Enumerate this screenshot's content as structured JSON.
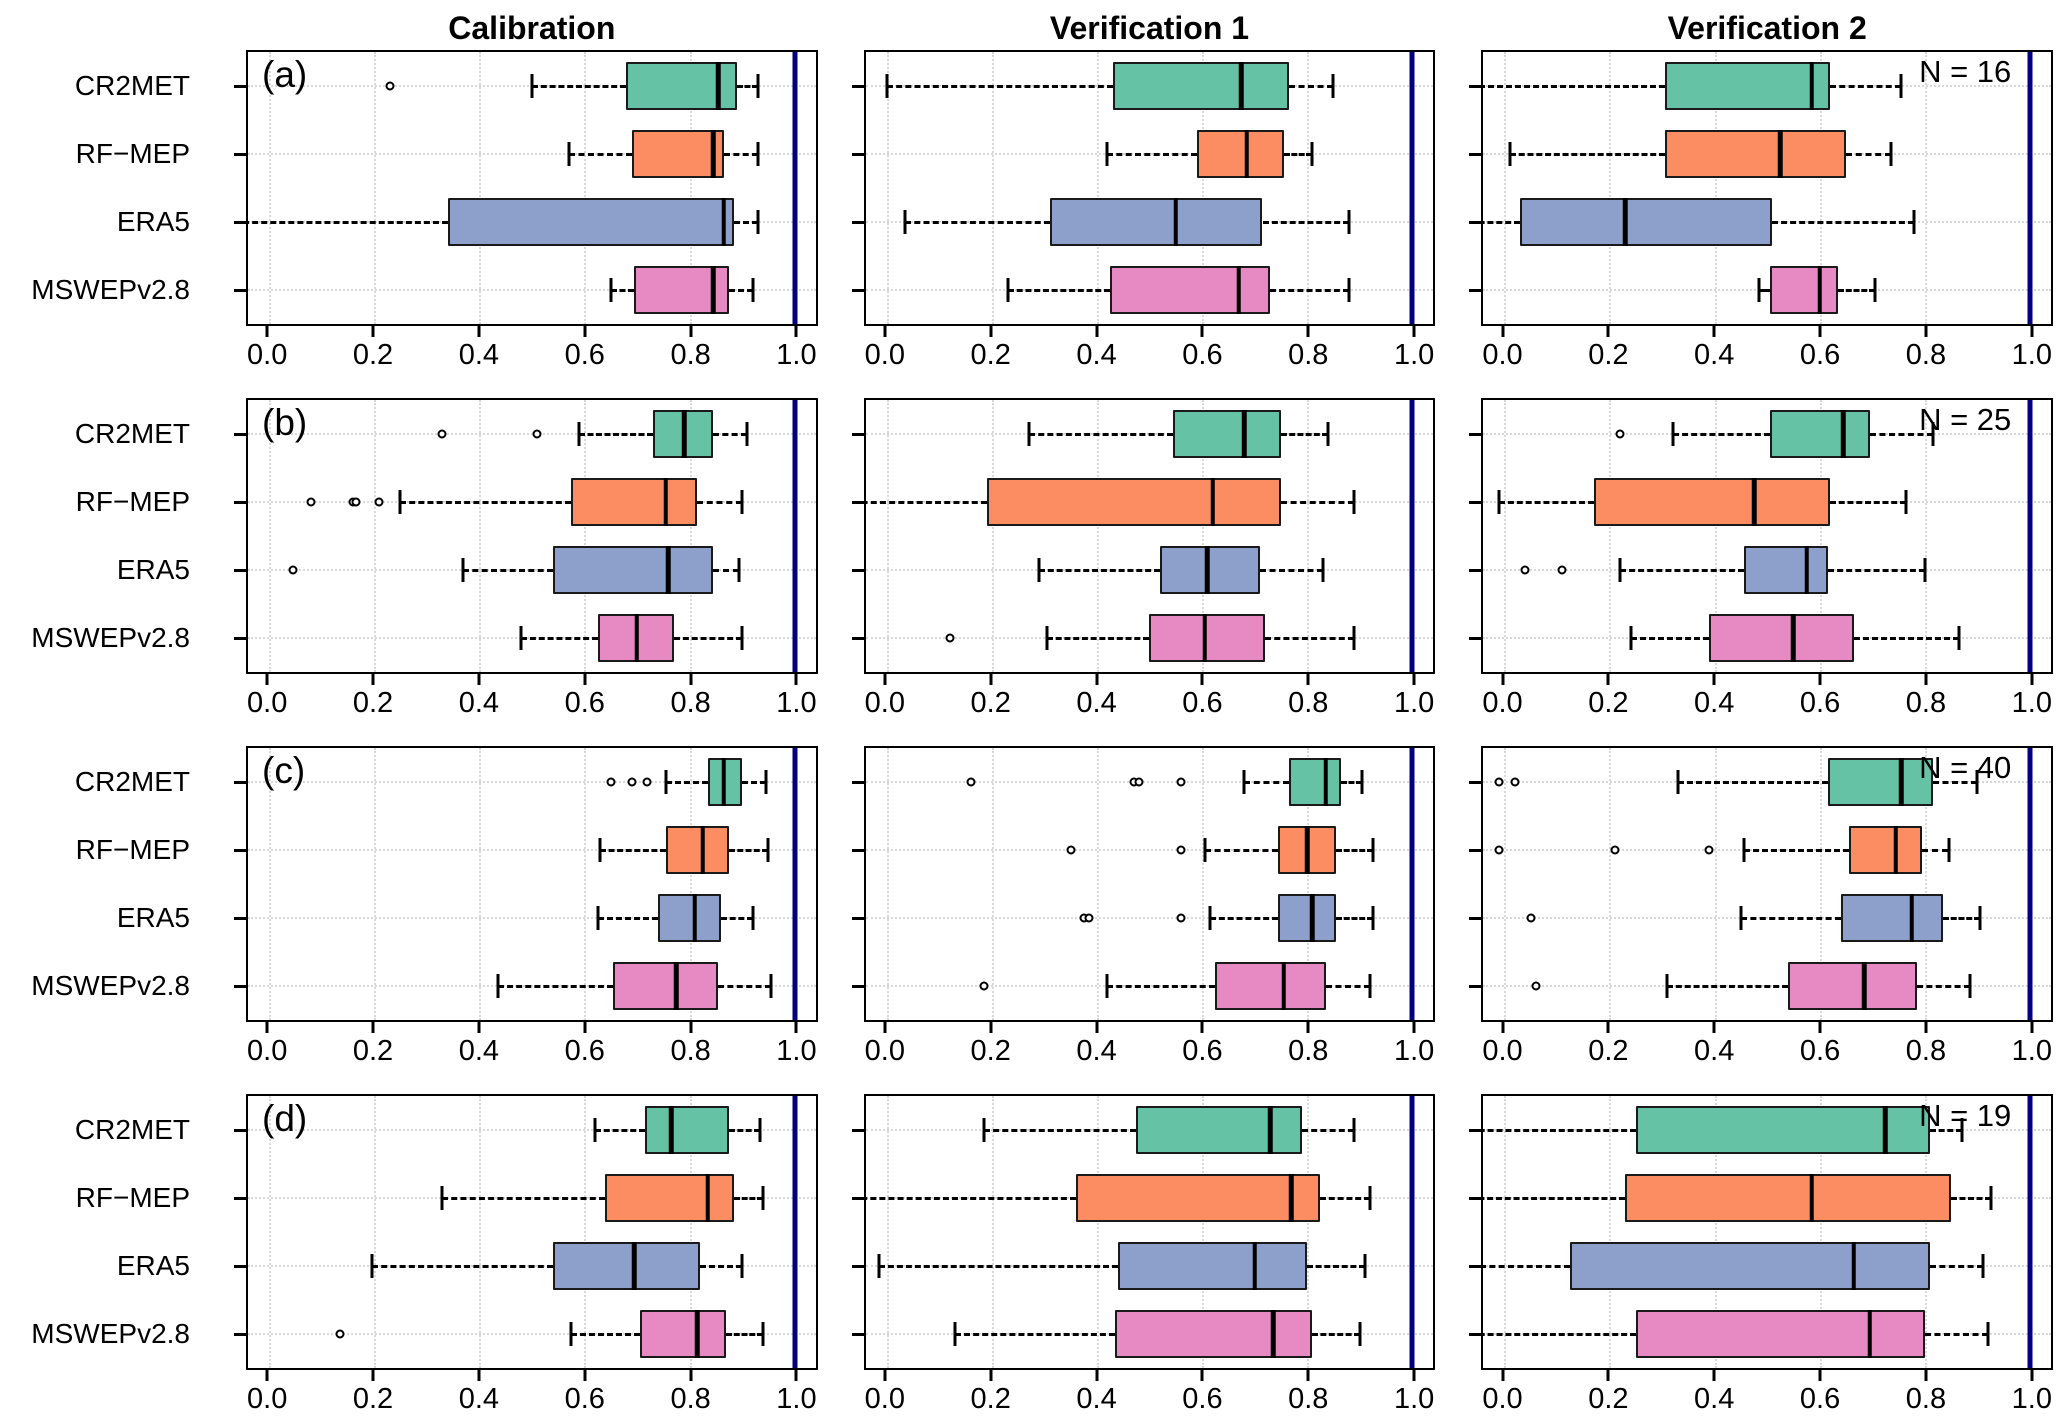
{
  "figure": {
    "col_titles": [
      "Calibration",
      "Verification 1",
      "Verification 2"
    ]
  },
  "chart_data": {
    "type": "boxplot",
    "orientation": "horizontal",
    "grid": "4 rows x 3 columns of panels",
    "columns": [
      "Calibration",
      "Verification 1",
      "Verification 2"
    ],
    "series": [
      "CR2MET",
      "RF−MEP",
      "ERA5",
      "MSWEPv2.8"
    ],
    "series_colors": [
      "#66C2A5",
      "#FC8D62",
      "#8DA0CB",
      "#E78AC3"
    ],
    "xlim": [
      0.0,
      1.0
    ],
    "x_axis_padding": 0.04,
    "x_ticks": [
      0.0,
      0.2,
      0.4,
      0.6,
      0.8,
      1.0
    ],
    "x_tick_labels": [
      "0.0",
      "0.2",
      "0.4",
      "0.6",
      "0.8",
      "1.0"
    ],
    "reference_line_x": 1.0,
    "reference_line_color": "#000080",
    "gridlines": "dotted light gray, horizontal per series and vertical per tick",
    "note": "whisker_low = null means the lower whisker extends beyond the left edge of the panel (clipped)",
    "rows": [
      {
        "label": "(a)",
        "n_label": "N = 16",
        "panels": [
          {
            "column": "Calibration",
            "boxes": [
              {
                "series": "CR2MET",
                "whisker_low": 0.5,
                "q1": 0.68,
                "median": 0.855,
                "q3": 0.89,
                "whisker_high": 0.93,
                "outliers": [
                  0.23
                ]
              },
              {
                "series": "RF-MEP",
                "whisker_low": 0.57,
                "q1": 0.69,
                "median": 0.845,
                "q3": 0.865,
                "whisker_high": 0.93,
                "outliers": []
              },
              {
                "series": "ERA5",
                "whisker_low": null,
                "q1": 0.34,
                "median": 0.865,
                "q3": 0.885,
                "whisker_high": 0.93,
                "outliers": []
              },
              {
                "series": "MSWEPv2.8",
                "whisker_low": 0.65,
                "q1": 0.695,
                "median": 0.845,
                "q3": 0.875,
                "whisker_high": 0.92,
                "outliers": []
              }
            ]
          },
          {
            "column": "Verification 1",
            "boxes": [
              {
                "series": "CR2MET",
                "whisker_low": 0.0,
                "q1": 0.43,
                "median": 0.675,
                "q3": 0.765,
                "whisker_high": 0.85,
                "outliers": []
              },
              {
                "series": "RF-MEP",
                "whisker_low": 0.42,
                "q1": 0.59,
                "median": 0.685,
                "q3": 0.755,
                "whisker_high": 0.81,
                "outliers": []
              },
              {
                "series": "ERA5",
                "whisker_low": 0.035,
                "q1": 0.31,
                "median": 0.55,
                "q3": 0.715,
                "whisker_high": 0.88,
                "outliers": []
              },
              {
                "series": "MSWEPv2.8",
                "whisker_low": 0.23,
                "q1": 0.425,
                "median": 0.67,
                "q3": 0.73,
                "whisker_high": 0.88,
                "outliers": []
              }
            ]
          },
          {
            "column": "Verification 2",
            "boxes": [
              {
                "series": "CR2MET",
                "whisker_low": null,
                "q1": 0.305,
                "median": 0.585,
                "q3": 0.62,
                "whisker_high": 0.755,
                "outliers": []
              },
              {
                "series": "RF-MEP",
                "whisker_low": 0.01,
                "q1": 0.305,
                "median": 0.525,
                "q3": 0.65,
                "whisker_high": 0.735,
                "outliers": []
              },
              {
                "series": "ERA5",
                "whisker_low": null,
                "q1": 0.03,
                "median": 0.23,
                "q3": 0.51,
                "whisker_high": 0.78,
                "outliers": []
              },
              {
                "series": "MSWEPv2.8",
                "whisker_low": 0.485,
                "q1": 0.505,
                "median": 0.6,
                "q3": 0.635,
                "whisker_high": 0.705,
                "outliers": []
              }
            ]
          }
        ]
      },
      {
        "label": "(b)",
        "n_label": "N = 25",
        "panels": [
          {
            "column": "Calibration",
            "boxes": [
              {
                "series": "CR2MET",
                "whisker_low": 0.59,
                "q1": 0.73,
                "median": 0.79,
                "q3": 0.845,
                "whisker_high": 0.91,
                "outliers": [
                  0.33,
                  0.51
                ]
              },
              {
                "series": "RF-MEP",
                "whisker_low": 0.25,
                "q1": 0.575,
                "median": 0.755,
                "q3": 0.815,
                "whisker_high": 0.9,
                "outliers": [
                  0.08,
                  0.16,
                  0.165,
                  0.21
                ]
              },
              {
                "series": "ERA5",
                "whisker_low": 0.37,
                "q1": 0.54,
                "median": 0.76,
                "q3": 0.845,
                "whisker_high": 0.895,
                "outliers": [
                  0.045
                ]
              },
              {
                "series": "MSWEPv2.8",
                "whisker_low": 0.48,
                "q1": 0.625,
                "median": 0.7,
                "q3": 0.77,
                "whisker_high": 0.9,
                "outliers": []
              }
            ]
          },
          {
            "column": "Verification 1",
            "boxes": [
              {
                "series": "CR2MET",
                "whisker_low": 0.27,
                "q1": 0.545,
                "median": 0.68,
                "q3": 0.75,
                "whisker_high": 0.84,
                "outliers": []
              },
              {
                "series": "RF-MEP",
                "whisker_low": null,
                "q1": 0.19,
                "median": 0.62,
                "q3": 0.75,
                "whisker_high": 0.89,
                "outliers": []
              },
              {
                "series": "ERA5",
                "whisker_low": 0.29,
                "q1": 0.52,
                "median": 0.61,
                "q3": 0.71,
                "whisker_high": 0.83,
                "outliers": []
              },
              {
                "series": "MSWEPv2.8",
                "whisker_low": 0.305,
                "q1": 0.5,
                "median": 0.605,
                "q3": 0.72,
                "whisker_high": 0.89,
                "outliers": [
                  0.12
                ]
              }
            ]
          },
          {
            "column": "Verification 2",
            "boxes": [
              {
                "series": "CR2MET",
                "whisker_low": 0.32,
                "q1": 0.505,
                "median": 0.645,
                "q3": 0.695,
                "whisker_high": 0.815,
                "outliers": [
                  0.22
                ]
              },
              {
                "series": "RF-MEP",
                "whisker_low": -0.01,
                "q1": 0.17,
                "median": 0.475,
                "q3": 0.62,
                "whisker_high": 0.765,
                "outliers": []
              },
              {
                "series": "ERA5",
                "whisker_low": 0.22,
                "q1": 0.455,
                "median": 0.575,
                "q3": 0.615,
                "whisker_high": 0.8,
                "outliers": [
                  0.04,
                  0.11
                ]
              },
              {
                "series": "MSWEPv2.8",
                "whisker_low": 0.24,
                "q1": 0.39,
                "median": 0.55,
                "q3": 0.665,
                "whisker_high": 0.865,
                "outliers": []
              }
            ]
          }
        ]
      },
      {
        "label": "(c)",
        "n_label": "N = 40",
        "panels": [
          {
            "column": "Calibration",
            "boxes": [
              {
                "series": "CR2MET",
                "whisker_low": 0.755,
                "q1": 0.835,
                "median": 0.865,
                "q3": 0.9,
                "whisker_high": 0.945,
                "outliers": [
                  0.65,
                  0.69,
                  0.72
                ]
              },
              {
                "series": "RF-MEP",
                "whisker_low": 0.63,
                "q1": 0.755,
                "median": 0.825,
                "q3": 0.875,
                "whisker_high": 0.95,
                "outliers": []
              },
              {
                "series": "ERA5",
                "whisker_low": 0.625,
                "q1": 0.74,
                "median": 0.81,
                "q3": 0.86,
                "whisker_high": 0.92,
                "outliers": []
              },
              {
                "series": "MSWEPv2.8",
                "whisker_low": 0.435,
                "q1": 0.655,
                "median": 0.775,
                "q3": 0.855,
                "whisker_high": 0.955,
                "outliers": []
              }
            ]
          },
          {
            "column": "Verification 1",
            "boxes": [
              {
                "series": "CR2MET",
                "whisker_low": 0.68,
                "q1": 0.765,
                "median": 0.835,
                "q3": 0.865,
                "whisker_high": 0.905,
                "outliers": [
                  0.16,
                  0.47,
                  0.48,
                  0.56
                ]
              },
              {
                "series": "RF-MEP",
                "whisker_low": 0.605,
                "q1": 0.745,
                "median": 0.8,
                "q3": 0.855,
                "whisker_high": 0.925,
                "outliers": [
                  0.35,
                  0.56
                ]
              },
              {
                "series": "ERA5",
                "whisker_low": 0.615,
                "q1": 0.745,
                "median": 0.81,
                "q3": 0.855,
                "whisker_high": 0.925,
                "outliers": [
                  0.375,
                  0.385,
                  0.56
                ]
              },
              {
                "series": "MSWEPv2.8",
                "whisker_low": 0.42,
                "q1": 0.625,
                "median": 0.755,
                "q3": 0.835,
                "whisker_high": 0.92,
                "outliers": [
                  0.185
                ]
              }
            ]
          },
          {
            "column": "Verification 2",
            "boxes": [
              {
                "series": "CR2MET",
                "whisker_low": 0.33,
                "q1": 0.615,
                "median": 0.755,
                "q3": 0.815,
                "whisker_high": 0.9,
                "outliers": [
                  -0.01,
                  0.02
                ]
              },
              {
                "series": "RF-MEP",
                "whisker_low": 0.455,
                "q1": 0.655,
                "median": 0.745,
                "q3": 0.795,
                "whisker_high": 0.845,
                "outliers": [
                  -0.01,
                  0.21,
                  0.39
                ]
              },
              {
                "series": "ERA5",
                "whisker_low": 0.45,
                "q1": 0.64,
                "median": 0.775,
                "q3": 0.835,
                "whisker_high": 0.905,
                "outliers": [
                  0.05
                ]
              },
              {
                "series": "MSWEPv2.8",
                "whisker_low": 0.31,
                "q1": 0.54,
                "median": 0.685,
                "q3": 0.785,
                "whisker_high": 0.885,
                "outliers": [
                  0.06
                ]
              }
            ]
          }
        ]
      },
      {
        "label": "(d)",
        "n_label": "N = 19",
        "panels": [
          {
            "column": "Calibration",
            "boxes": [
              {
                "series": "CR2MET",
                "whisker_low": 0.62,
                "q1": 0.715,
                "median": 0.765,
                "q3": 0.875,
                "whisker_high": 0.935,
                "outliers": []
              },
              {
                "series": "RF-MEP",
                "whisker_low": 0.33,
                "q1": 0.64,
                "median": 0.835,
                "q3": 0.885,
                "whisker_high": 0.94,
                "outliers": []
              },
              {
                "series": "ERA5",
                "whisker_low": 0.195,
                "q1": 0.54,
                "median": 0.695,
                "q3": 0.82,
                "whisker_high": 0.9,
                "outliers": []
              },
              {
                "series": "MSWEPv2.8",
                "whisker_low": 0.575,
                "q1": 0.705,
                "median": 0.815,
                "q3": 0.87,
                "whisker_high": 0.94,
                "outliers": [
                  0.135
                ]
              }
            ]
          },
          {
            "column": "Verification 1",
            "boxes": [
              {
                "series": "CR2MET",
                "whisker_low": 0.185,
                "q1": 0.475,
                "median": 0.73,
                "q3": 0.79,
                "whisker_high": 0.89,
                "outliers": []
              },
              {
                "series": "RF-MEP",
                "whisker_low": null,
                "q1": 0.36,
                "median": 0.77,
                "q3": 0.825,
                "whisker_high": 0.92,
                "outliers": []
              },
              {
                "series": "ERA5",
                "whisker_low": -0.015,
                "q1": 0.44,
                "median": 0.7,
                "q3": 0.8,
                "whisker_high": 0.91,
                "outliers": []
              },
              {
                "series": "MSWEPv2.8",
                "whisker_low": 0.13,
                "q1": 0.435,
                "median": 0.735,
                "q3": 0.81,
                "whisker_high": 0.9,
                "outliers": []
              }
            ]
          },
          {
            "column": "Verification 2",
            "boxes": [
              {
                "series": "CR2MET",
                "whisker_low": null,
                "q1": 0.25,
                "median": 0.725,
                "q3": 0.81,
                "whisker_high": 0.87,
                "outliers": []
              },
              {
                "series": "RF-MEP",
                "whisker_low": null,
                "q1": 0.23,
                "median": 0.585,
                "q3": 0.85,
                "whisker_high": 0.925,
                "outliers": []
              },
              {
                "series": "ERA5",
                "whisker_low": null,
                "q1": 0.125,
                "median": 0.665,
                "q3": 0.81,
                "whisker_high": 0.91,
                "outliers": []
              },
              {
                "series": "MSWEPv2.8",
                "whisker_low": null,
                "q1": 0.25,
                "median": 0.695,
                "q3": 0.8,
                "whisker_high": 0.92,
                "outliers": []
              }
            ]
          }
        ]
      }
    ]
  }
}
